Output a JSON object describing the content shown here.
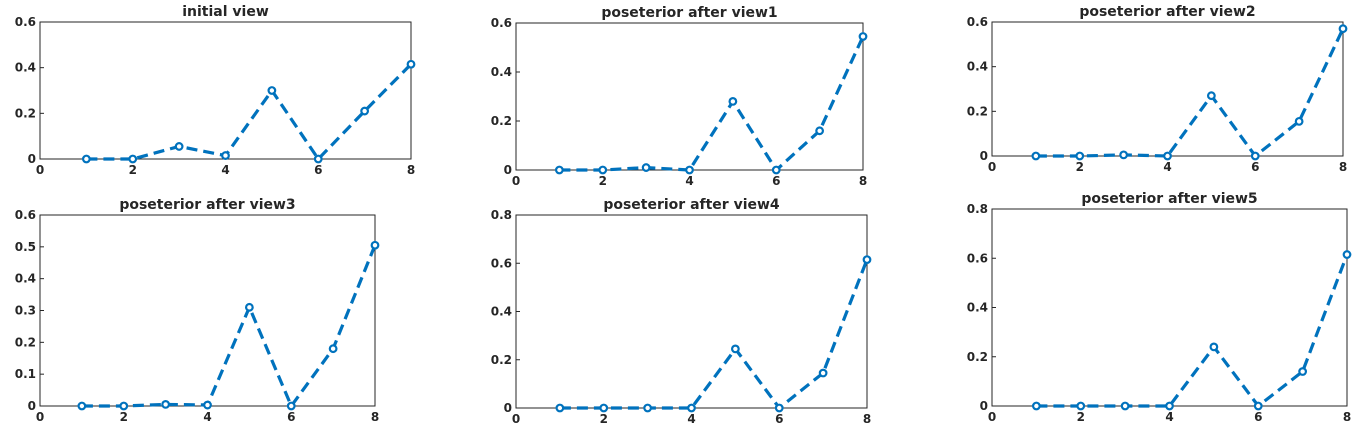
{
  "chart_data": [
    {
      "type": "line",
      "title": "initial view",
      "x": [
        1,
        2,
        3,
        4,
        5,
        6,
        7,
        8
      ],
      "values": [
        0.0,
        0.0,
        0.055,
        0.015,
        0.3,
        0.0,
        0.21,
        0.415
      ],
      "xlim": [
        0,
        8
      ],
      "ylim": [
        0,
        0.6
      ],
      "xticks": [
        "0",
        "2",
        "4",
        "6",
        "8"
      ],
      "yticks": [
        "0",
        "0.2",
        "0.4",
        "0.6"
      ],
      "grid": false,
      "marker": "circle",
      "line_style": "dashed",
      "color": "#0072BD"
    },
    {
      "type": "line",
      "title": "poseterior after view1",
      "x": [
        1,
        2,
        3,
        4,
        5,
        6,
        7,
        8
      ],
      "values": [
        0.0,
        0.0,
        0.01,
        0.0,
        0.28,
        0.0,
        0.16,
        0.545
      ],
      "xlim": [
        0,
        8
      ],
      "ylim": [
        0,
        0.6
      ],
      "xticks": [
        "0",
        "2",
        "4",
        "6",
        "8"
      ],
      "yticks": [
        "0",
        "0.2",
        "0.4",
        "0.6"
      ],
      "grid": false,
      "marker": "circle",
      "line_style": "dashed",
      "color": "#0072BD"
    },
    {
      "type": "line",
      "title": "poseterior after view2",
      "x": [
        1,
        2,
        3,
        4,
        5,
        6,
        7,
        8
      ],
      "values": [
        0.0,
        0.0,
        0.005,
        0.0,
        0.27,
        0.0,
        0.155,
        0.57
      ],
      "xlim": [
        0,
        8
      ],
      "ylim": [
        0,
        0.6
      ],
      "xticks": [
        "0",
        "2",
        "4",
        "6",
        "8"
      ],
      "yticks": [
        "0",
        "0.2",
        "0.4",
        "0.6"
      ],
      "grid": false,
      "marker": "circle",
      "line_style": "dashed",
      "color": "#0072BD"
    },
    {
      "type": "line",
      "title": "poseterior after view3",
      "x": [
        1,
        2,
        3,
        4,
        5,
        6,
        7,
        8
      ],
      "values": [
        0.0,
        0.0,
        0.005,
        0.003,
        0.31,
        0.0,
        0.18,
        0.505
      ],
      "xlim": [
        0,
        8
      ],
      "ylim": [
        0,
        0.6
      ],
      "xticks": [
        "0",
        "2",
        "4",
        "6",
        "8"
      ],
      "yticks": [
        "0",
        "0.1",
        "0.2",
        "0.3",
        "0.4",
        "0.5",
        "0.6"
      ],
      "grid": false,
      "marker": "circle",
      "line_style": "dashed",
      "color": "#0072BD"
    },
    {
      "type": "line",
      "title": "poseterior after view4",
      "x": [
        1,
        2,
        3,
        4,
        5,
        6,
        7,
        8
      ],
      "values": [
        0.0,
        0.0,
        0.0,
        0.0,
        0.245,
        0.0,
        0.145,
        0.615
      ],
      "xlim": [
        0,
        8
      ],
      "ylim": [
        0,
        0.8
      ],
      "xticks": [
        "0",
        "2",
        "4",
        "6",
        "8"
      ],
      "yticks": [
        "0",
        "0.2",
        "0.4",
        "0.6",
        "0.8"
      ],
      "grid": false,
      "marker": "circle",
      "line_style": "dashed",
      "color": "#0072BD"
    },
    {
      "type": "line",
      "title": "poseterior after view5",
      "x": [
        1,
        2,
        3,
        4,
        5,
        6,
        7,
        8
      ],
      "values": [
        0.0,
        0.0,
        0.0,
        0.0,
        0.24,
        0.0,
        0.14,
        0.615
      ],
      "xlim": [
        0,
        8
      ],
      "ylim": [
        0,
        0.8
      ],
      "xticks": [
        "0",
        "2",
        "4",
        "6",
        "8"
      ],
      "yticks": [
        "0",
        "0.2",
        "0.4",
        "0.6",
        "0.8"
      ],
      "grid": false,
      "marker": "circle",
      "line_style": "dashed",
      "color": "#0072BD"
    }
  ]
}
